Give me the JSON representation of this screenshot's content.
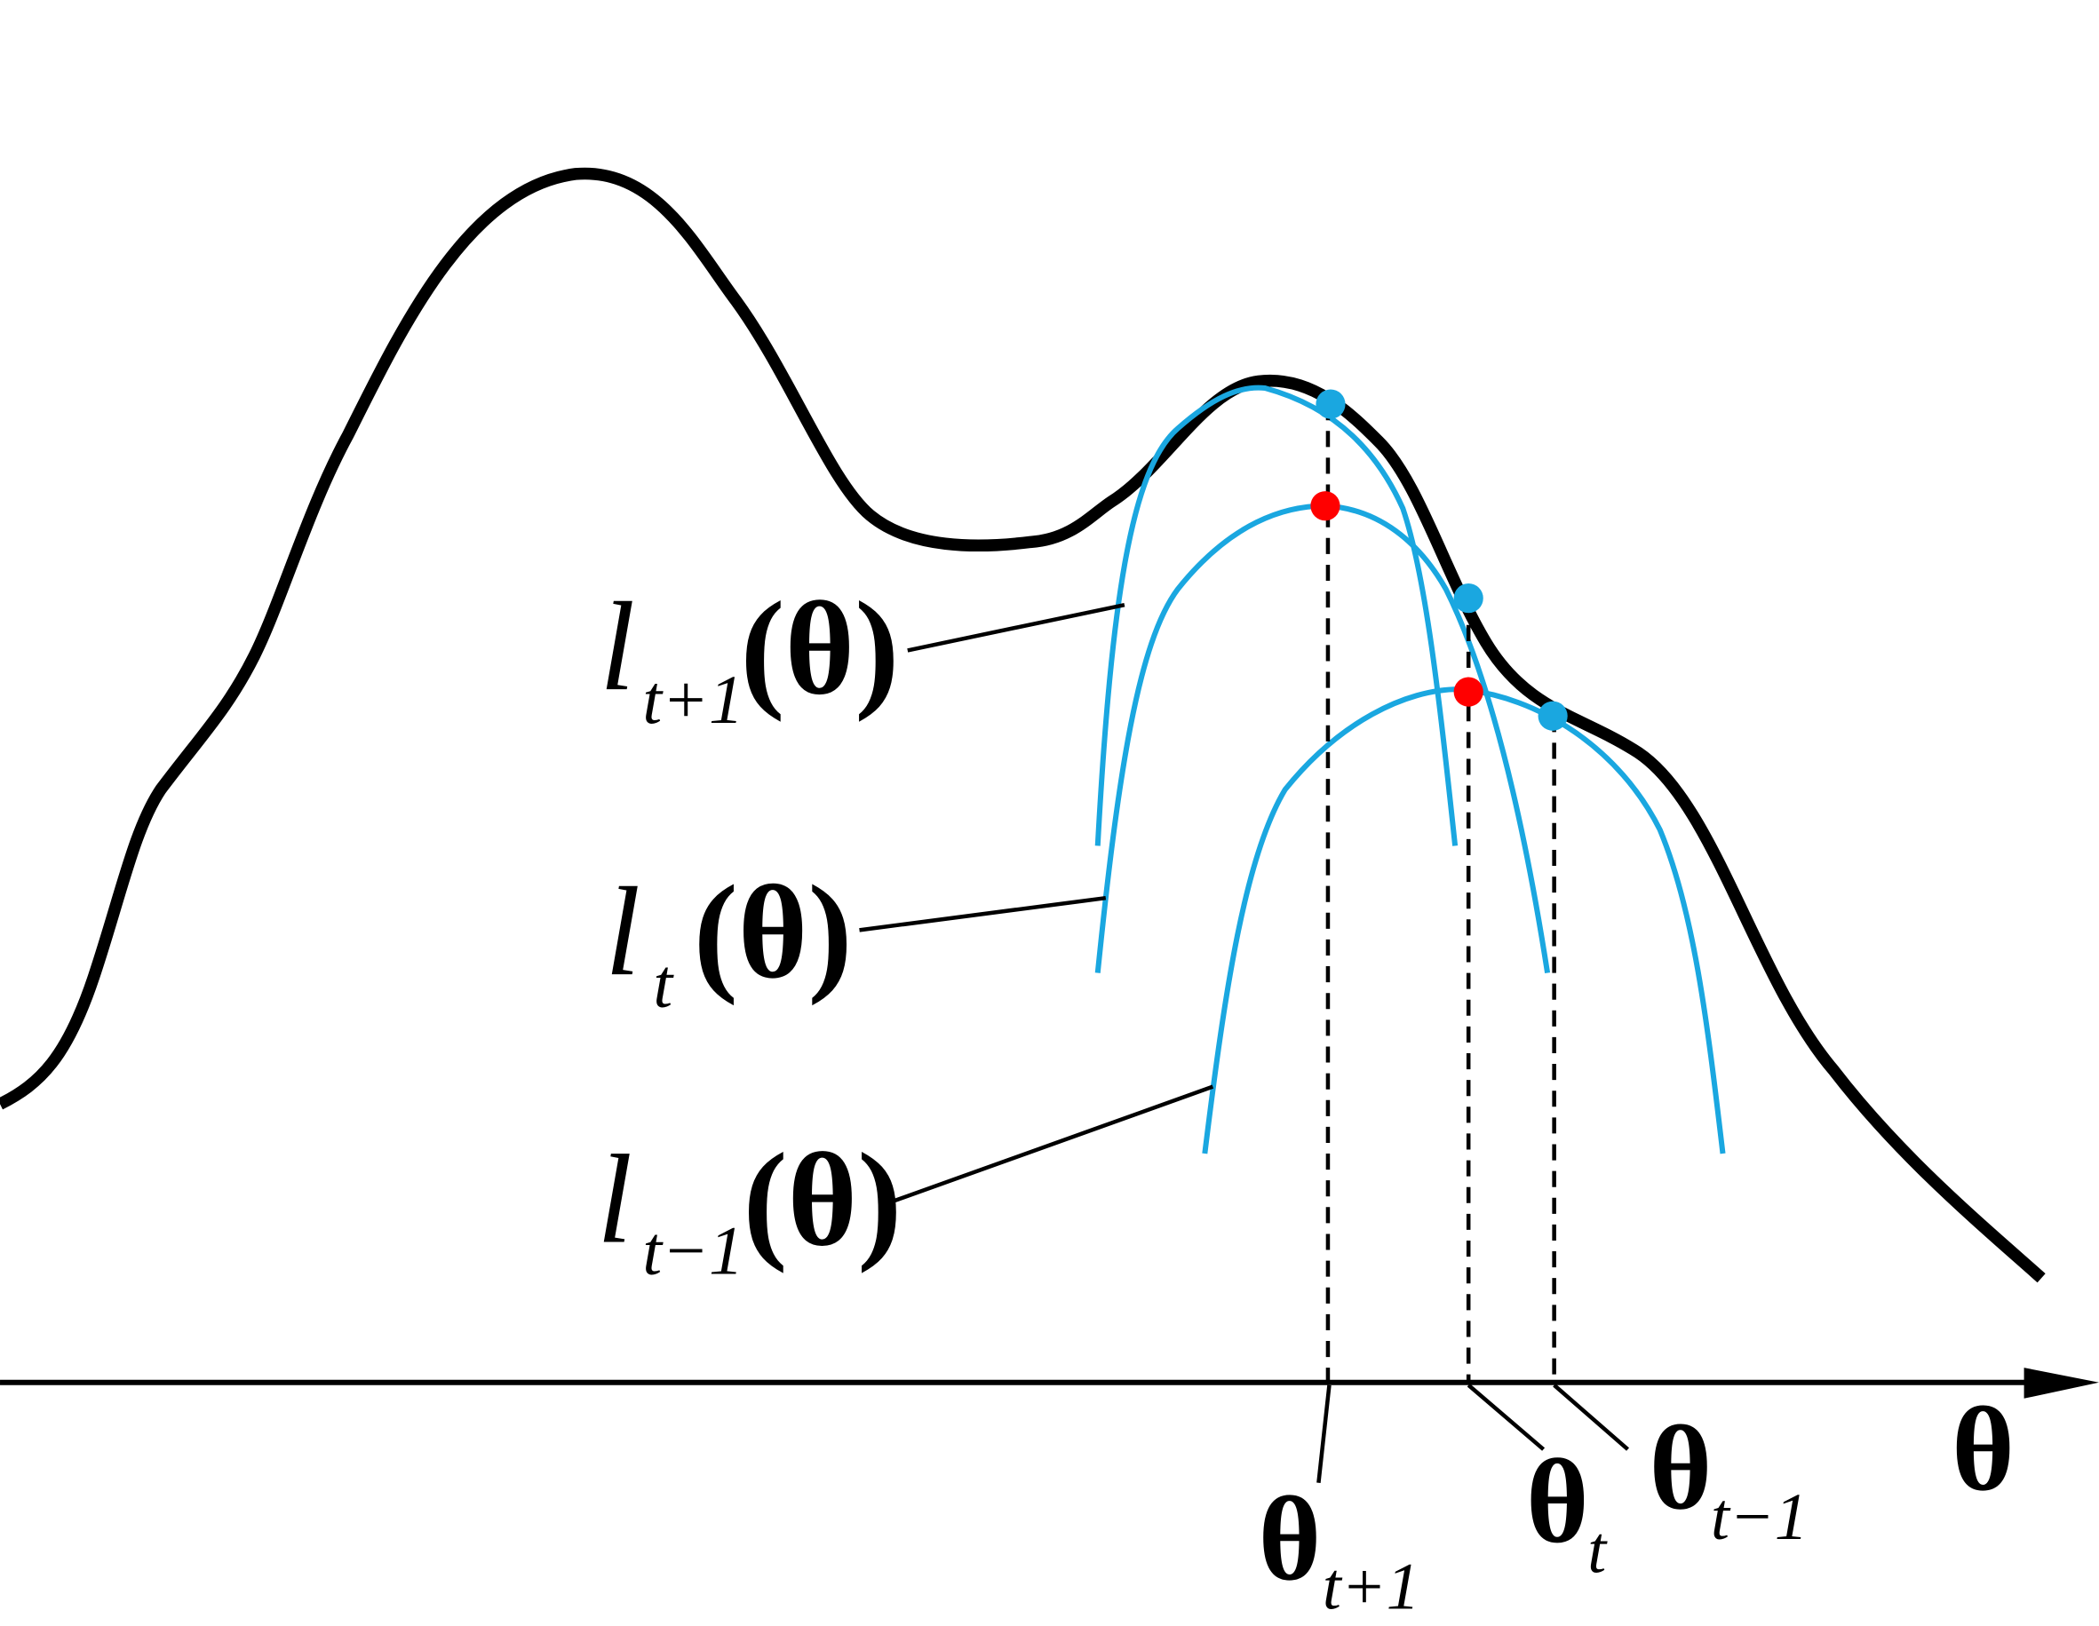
{
  "curve_labels": [
    {
      "main": "l",
      "sub": "t+1",
      "arg": "(θ)"
    },
    {
      "main": "l",
      "sub": "t",
      "arg": "(θ)"
    },
    {
      "main": "l",
      "sub": "t−1",
      "arg": "(θ)"
    }
  ],
  "point_labels": [
    {
      "main": "θ",
      "sub": "t+1"
    },
    {
      "main": "θ",
      "sub": "t"
    },
    {
      "main": "θ",
      "sub": "t−1"
    }
  ],
  "axis_label": "θ"
}
